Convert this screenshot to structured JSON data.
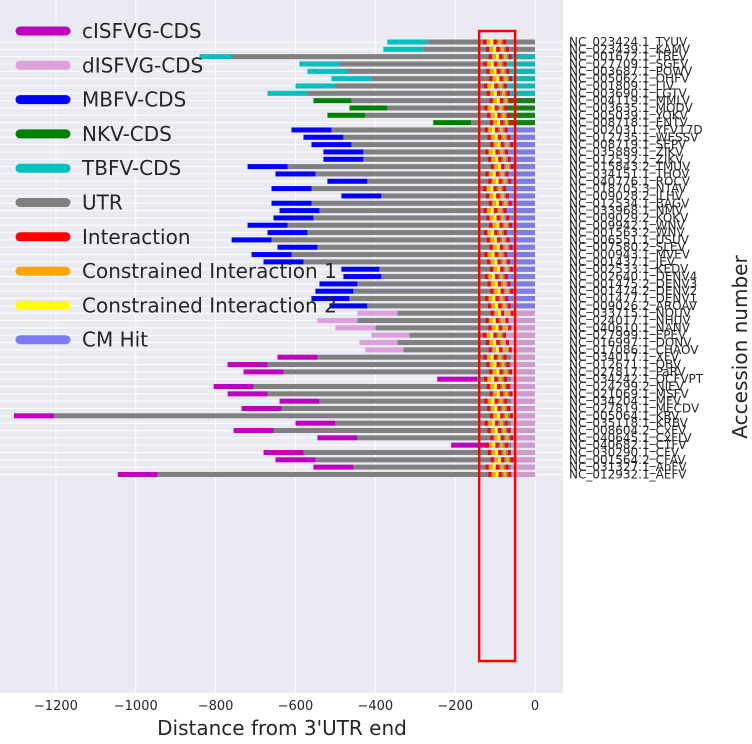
{
  "chart_data": {
    "type": "bar",
    "title": "",
    "xlabel": "Distance from 3'UTR end",
    "ylabel": "Accession number",
    "xlim": [
      -1340,
      70
    ],
    "xticks": [
      -1200,
      -1000,
      -800,
      -600,
      -400,
      -200,
      0
    ],
    "xtick_labels": [
      "−1200",
      "−1000",
      "−800",
      "−600",
      "−400",
      "−200",
      "0"
    ],
    "grid": true,
    "legend_position": "top-left",
    "highlight_box": {
      "x_range": [
        -140,
        -50
      ],
      "color": "#ff0000"
    },
    "legend": [
      {
        "key": "cISFVG",
        "label": "cISFVG-CDS",
        "color": "#bf00bf"
      },
      {
        "key": "dISFVG",
        "label": "dISFVG-CDS",
        "color": "#dda0dd"
      },
      {
        "key": "MBFV",
        "label": "MBFV-CDS",
        "color": "#0000ff"
      },
      {
        "key": "NKV",
        "label": "NKV-CDS",
        "color": "#008000"
      },
      {
        "key": "TBFV",
        "label": "TBFV-CDS",
        "color": "#00bfbf"
      },
      {
        "key": "UTR",
        "label": "UTR",
        "color": "#808080"
      },
      {
        "key": "Interaction",
        "label": "Interaction",
        "color": "#ff0000"
      },
      {
        "key": "CI1",
        "label": "Constrained Interaction 1",
        "color": "#ffa500"
      },
      {
        "key": "CI2",
        "label": "Constrained Interaction 2",
        "color": "#ffff00"
      },
      {
        "key": "CM",
        "label": "CM Hit",
        "color": "#7b7bf5"
      }
    ],
    "rows": [
      {
        "acc": "NC_023424.1_TYUV",
        "cds": "TBFV",
        "cds_start": -370,
        "utr_start": -270,
        "cm": 0
      },
      {
        "acc": "NC_023439.1_KAMV",
        "cds": "TBFV",
        "cds_start": -380,
        "utr_start": -280,
        "cm": 0
      },
      {
        "acc": "NC_001672.1_TBEV",
        "cds": "TBFV",
        "cds_start": -840,
        "utr_start": -760,
        "cm": -70
      },
      {
        "acc": "NC_027709.1_SGEV",
        "cds": "TBFV",
        "cds_start": -590,
        "utr_start": -490,
        "cm": -70
      },
      {
        "acc": "NC_003687.1_POWV",
        "cds": "TBFV",
        "cds_start": -570,
        "utr_start": -470,
        "cm": -70
      },
      {
        "acc": "NC_005062.1_OHFV",
        "cds": "TBFV",
        "cds_start": -510,
        "utr_start": -410,
        "cm": -70
      },
      {
        "acc": "NC_001809.1_LIV",
        "cds": "TBFV",
        "cds_start": -600,
        "utr_start": -500,
        "cm": -70
      },
      {
        "acc": "NC_003690.1_LGTV",
        "cds": "TBFV",
        "cds_start": -670,
        "utr_start": -570,
        "cm": -70
      },
      {
        "acc": "NC_004119.1_MMLV",
        "cds": "NKV",
        "cds_start": -555,
        "utr_start": -460,
        "cm": -70
      },
      {
        "acc": "NC_003635.1_MODV",
        "cds": "NKV",
        "cds_start": -465,
        "utr_start": -370,
        "cm": -70
      },
      {
        "acc": "NC_005039.1_YOKV",
        "cds": "NKV",
        "cds_start": -520,
        "utr_start": -425,
        "cm": -70
      },
      {
        "acc": "NC_008718.1_ENTV",
        "cds": "NKV",
        "cds_start": -255,
        "utr_start": -160,
        "cm": -70
      },
      {
        "acc": "NC_002031.1_YFV17D",
        "cds": "MBFV",
        "cds_start": -610,
        "utr_start": -510,
        "cm": -80
      },
      {
        "acc": "NC_012735.1_WESSV",
        "cds": "MBFV",
        "cds_start": -580,
        "utr_start": -480,
        "cm": -80
      },
      {
        "acc": "NC_008719.1_SEPV",
        "cds": "MBFV",
        "cds_start": -560,
        "utr_start": -460,
        "cm": -80
      },
      {
        "acc": "NC_035889.1_ZIKV",
        "cds": "MBFV",
        "cds_start": -530,
        "utr_start": -430,
        "cm": -80
      },
      {
        "acc": "NC_012532.1_ZIKV",
        "cds": "MBFV",
        "cds_start": -530,
        "utr_start": -430,
        "cm": -80
      },
      {
        "acc": "NC_015843.2_TMUV",
        "cds": "MBFV",
        "cds_start": -720,
        "utr_start": -620,
        "cm": -80
      },
      {
        "acc": "NC_034151.1_THOV",
        "cds": "MBFV",
        "cds_start": -650,
        "utr_start": -550,
        "cm": -80
      },
      {
        "acc": "NC_040776.1_ROCV",
        "cds": "MBFV",
        "cds_start": -520,
        "utr_start": -420,
        "cm": -80
      },
      {
        "acc": "NC_018705.3_NTAV",
        "cds": "MBFV",
        "cds_start": -660,
        "utr_start": -560,
        "cm": -80
      },
      {
        "acc": "NC_009028.2_ILHV",
        "cds": "MBFV",
        "cds_start": -485,
        "utr_start": -385,
        "cm": -80
      },
      {
        "acc": "NC_012534.1_BAGV",
        "cds": "MBFV",
        "cds_start": -660,
        "utr_start": -560,
        "cm": -80
      },
      {
        "acc": "NC_033968.1_NMV",
        "cds": "MBFV",
        "cds_start": -640,
        "utr_start": -540,
        "cm": -80
      },
      {
        "acc": "NC_009029.2_KOKV",
        "cds": "MBFV",
        "cds_start": -655,
        "utr_start": -555,
        "cm": -80
      },
      {
        "acc": "NC_009942.1_WNV",
        "cds": "MBFV",
        "cds_start": -720,
        "utr_start": -620,
        "cm": -80
      },
      {
        "acc": "NC_001563.2_WNV",
        "cds": "MBFV",
        "cds_start": -670,
        "utr_start": -570,
        "cm": -80
      },
      {
        "acc": "NC_006551.1_USUV",
        "cds": "MBFV",
        "cds_start": -760,
        "utr_start": -660,
        "cm": -80
      },
      {
        "acc": "NC_007580.2_SLEV",
        "cds": "MBFV",
        "cds_start": -645,
        "utr_start": -545,
        "cm": -80
      },
      {
        "acc": "NC_000943.1_MVEV",
        "cds": "MBFV",
        "cds_start": -710,
        "utr_start": -610,
        "cm": -80
      },
      {
        "acc": "NC_001437.1_JEV",
        "cds": "MBFV",
        "cds_start": -680,
        "utr_start": -580,
        "cm": -80
      },
      {
        "acc": "NC_002533.1_KEDV",
        "cds": "MBFV",
        "cds_start": -485,
        "utr_start": -390,
        "cm": -80
      },
      {
        "acc": "NC_002640.1_DENV4",
        "cds": "MBFV",
        "cds_start": -480,
        "utr_start": -385,
        "cm": -80
      },
      {
        "acc": "NC_001475.2_DENV3",
        "cds": "MBFV",
        "cds_start": -540,
        "utr_start": -445,
        "cm": -80
      },
      {
        "acc": "NC_001474.2_DENV2",
        "cds": "MBFV",
        "cds_start": -550,
        "utr_start": -455,
        "cm": -80
      },
      {
        "acc": "NC_001477.1_DENV1",
        "cds": "MBFV",
        "cds_start": -560,
        "utr_start": -465,
        "cm": -80
      },
      {
        "acc": "NC_009026.2_AROAV",
        "cds": "MBFV",
        "cds_start": -515,
        "utr_start": -420,
        "cm": -80
      },
      {
        "acc": "NC_033715.1_NOUV",
        "cds": "dISFVG",
        "cds_start": -445,
        "utr_start": -345,
        "cm": -80
      },
      {
        "acc": "NC_024017.1_NHUV",
        "cds": "dISFVG",
        "cds_start": -545,
        "utr_start": -445,
        "cm": -80
      },
      {
        "acc": "NC_040610.1_NANV",
        "cds": "dISFVG",
        "cds_start": -500,
        "utr_start": -400,
        "cm": -80
      },
      {
        "acc": "NC_027999.1_EPEV",
        "cds": "dISFVG",
        "cds_start": -410,
        "utr_start": -315,
        "cm": -80
      },
      {
        "acc": "NC_016997.1_DONV",
        "cds": "dISFVG",
        "cds_start": -440,
        "utr_start": -345,
        "cm": -80
      },
      {
        "acc": "NC_017086.1_CHAOV",
        "cds": "dISFVG",
        "cds_start": -425,
        "utr_start": -330,
        "cm": -80
      },
      {
        "acc": "NC_034017.1_XFV",
        "cds": "cISFVG",
        "cds_start": -645,
        "utr_start": -545,
        "cm": -60
      },
      {
        "acc": "NC_012671.1_QBV",
        "cds": "cISFVG",
        "cds_start": -770,
        "utr_start": -670,
        "cm": -60
      },
      {
        "acc": "NC_027817.1_PaRV",
        "cds": "cISFVG",
        "cds_start": -730,
        "utr_start": -630,
        "cm": -60
      },
      {
        "acc": "NC_034242.1_OCFVPT",
        "cds": "cISFVG",
        "cds_start": -245,
        "utr_start": -145,
        "cm": -60
      },
      {
        "acc": "NC_024299.2_NIEV",
        "cds": "cISFVG",
        "cds_start": -805,
        "utr_start": -705,
        "cm": -60
      },
      {
        "acc": "NC_021069.1_MSFV",
        "cds": "cISFVG",
        "cds_start": -770,
        "utr_start": -670,
        "cm": -60
      },
      {
        "acc": "NC_034204.1_MFV",
        "cds": "cISFVG",
        "cds_start": -640,
        "utr_start": -540,
        "cm": -60
      },
      {
        "acc": "NC_027819.1_MECDV",
        "cds": "cISFVG",
        "cds_start": -735,
        "utr_start": -635,
        "cm": -60
      },
      {
        "acc": "NC_005064.1_KRV",
        "cds": "cISFVG",
        "cds_start": -1305,
        "utr_start": -1205,
        "cm": -60
      },
      {
        "acc": "NC_035118.1_KRBV",
        "cds": "cISFVG",
        "cds_start": -600,
        "utr_start": -500,
        "cm": -60
      },
      {
        "acc": "NC_008604.2_CxFV",
        "cds": "cISFVG",
        "cds_start": -755,
        "utr_start": -655,
        "cm": -60
      },
      {
        "acc": "NC_040645.1_CxFLV",
        "cds": "cISFVG",
        "cds_start": -545,
        "utr_start": -445,
        "cm": -60
      },
      {
        "acc": "NC_040682.1_CTFV",
        "cds": "cISFVG",
        "cds_start": -210,
        "utr_start": -110,
        "cm": -60
      },
      {
        "acc": "NC_030290.1_CFV",
        "cds": "cISFVG",
        "cds_start": -680,
        "utr_start": -580,
        "cm": -60
      },
      {
        "acc": "NC_001564.2_CFAV",
        "cds": "cISFVG",
        "cds_start": -650,
        "utr_start": -550,
        "cm": -60
      },
      {
        "acc": "NC_031327.1_AnFV",
        "cds": "cISFVG",
        "cds_start": -555,
        "utr_start": -455,
        "cm": -60
      },
      {
        "acc": "NC_012932.1_AEFV",
        "cds": "cISFVG",
        "cds_start": -1045,
        "utr_start": -945,
        "cm": -60
      }
    ]
  }
}
